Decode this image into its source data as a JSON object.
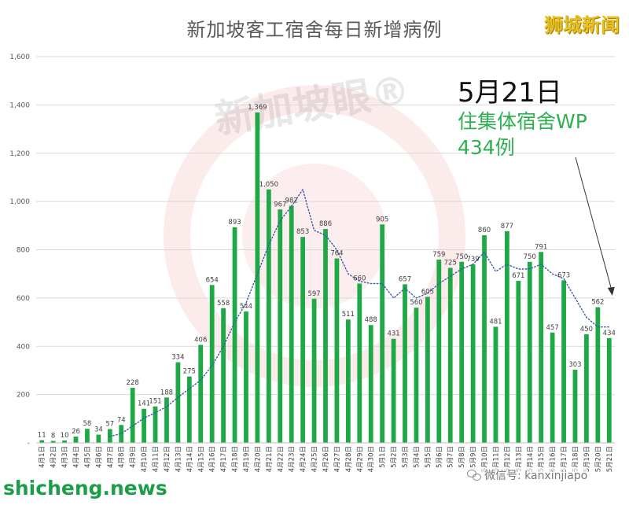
{
  "title": "新加坡客工宿舍每日新增病例",
  "brand_top": "狮城新闻",
  "annotation": {
    "date": "5月21日",
    "line1": "住集体宿舍WP",
    "line2": "434例"
  },
  "watermark": "新加坡眼®",
  "brand_bottom": "shicheng.news",
  "wechat_label": "微信号: kanxinjiapo",
  "colors": {
    "bar": "#1fa846",
    "trend": "#3b5aa8",
    "title": "#595959",
    "annotation_green": "#2fb050",
    "brand_top": "#e8c020",
    "brand_bottom": "#1a9e4a",
    "watermark": "#e35a5a"
  },
  "chart_data": {
    "type": "bar",
    "title": "新加坡客工宿舍每日新增病例",
    "xlabel": "",
    "ylabel": "",
    "ylim": [
      0,
      1600
    ],
    "yticks": [
      0,
      200,
      400,
      600,
      800,
      1000,
      1200,
      1400,
      1600
    ],
    "ytick_labels": [
      "-",
      "200",
      "400",
      "600",
      "800",
      "1,000",
      "1,200",
      "1,400",
      "1,600"
    ],
    "grid": true,
    "legend": "none",
    "categories": [
      "4月1日",
      "4月2日",
      "4月3日",
      "4月4日",
      "4月5日",
      "4月6日",
      "4月7日",
      "4月8日",
      "4月9日",
      "4月10日",
      "4月11日",
      "4月12日",
      "4月13日",
      "4月14日",
      "4月15日",
      "4月16日",
      "4月17日",
      "4月18日",
      "4月19日",
      "4月20日",
      "4月21日",
      "4月22日",
      "4月23日",
      "4月24日",
      "4月25日",
      "4月26日",
      "4月27日",
      "4月28日",
      "4月29日",
      "4月30日",
      "5月1日",
      "5月2日",
      "5月3日",
      "5月4日",
      "5月5日",
      "5月6日",
      "5月7日",
      "5月8日",
      "5月9日",
      "5月10日",
      "5月11日",
      "5月12日",
      "5月13日",
      "5月14日",
      "5月15日",
      "5月16日",
      "5月17日",
      "5月18日",
      "5月19日",
      "5月20日",
      "5月21日"
    ],
    "values": [
      11,
      8,
      10,
      26,
      58,
      34,
      57,
      74,
      228,
      141,
      151,
      188,
      334,
      275,
      406,
      654,
      558,
      893,
      544,
      1369,
      1050,
      967,
      982,
      853,
      597,
      886,
      764,
      511,
      660,
      488,
      905,
      431,
      657,
      560,
      605,
      759,
      725,
      750,
      739,
      860,
      481,
      877,
      671,
      750,
      791,
      457,
      673,
      303,
      450,
      562,
      434
    ],
    "value_labels": [
      "11",
      "8",
      "10",
      "26",
      "58",
      "34",
      "57",
      "74",
      "228",
      "141",
      "151",
      "188",
      "334",
      "275",
      "406",
      "654",
      "558",
      "893",
      "544",
      "1,369",
      "1,050",
      "967",
      "982",
      "853",
      "597",
      "886",
      "764",
      "511",
      "660",
      "488",
      "905",
      "431",
      "657",
      "560",
      "605",
      "759",
      "725",
      "750",
      "739",
      "860",
      "481",
      "877",
      "671",
      "750",
      "791",
      "457",
      "673",
      "303",
      "450",
      "562",
      "434"
    ],
    "trendline": {
      "style": "dotted",
      "values": [
        null,
        null,
        null,
        null,
        null,
        null,
        27,
        38,
        70,
        102,
        125,
        150,
        189,
        224,
        260,
        320,
        400,
        500,
        580,
        700,
        820,
        920,
        980,
        1050,
        880,
        860,
        800,
        700,
        670,
        660,
        660,
        600,
        640,
        600,
        620,
        660,
        690,
        720,
        740,
        790,
        710,
        740,
        720,
        720,
        740,
        700,
        680,
        600,
        520,
        480,
        480
      ]
    }
  }
}
